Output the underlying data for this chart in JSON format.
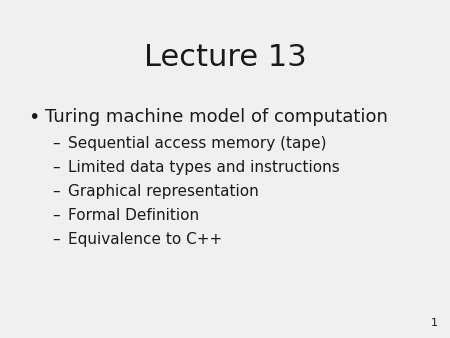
{
  "title": "Lecture 13",
  "title_fontsize": 22,
  "title_font": "Georgia",
  "bullet_text": "Turing machine model of computation",
  "bullet_fontsize": 13,
  "sub_items": [
    "Sequential access memory (tape)",
    "Limited data types and instructions",
    "Graphical representation",
    "Formal Definition",
    "Equivalence to C++"
  ],
  "sub_fontsize": 11,
  "background_color": "#f0f0f0",
  "text_color": "#1a1a1a",
  "page_number": "1",
  "page_number_fontsize": 8
}
